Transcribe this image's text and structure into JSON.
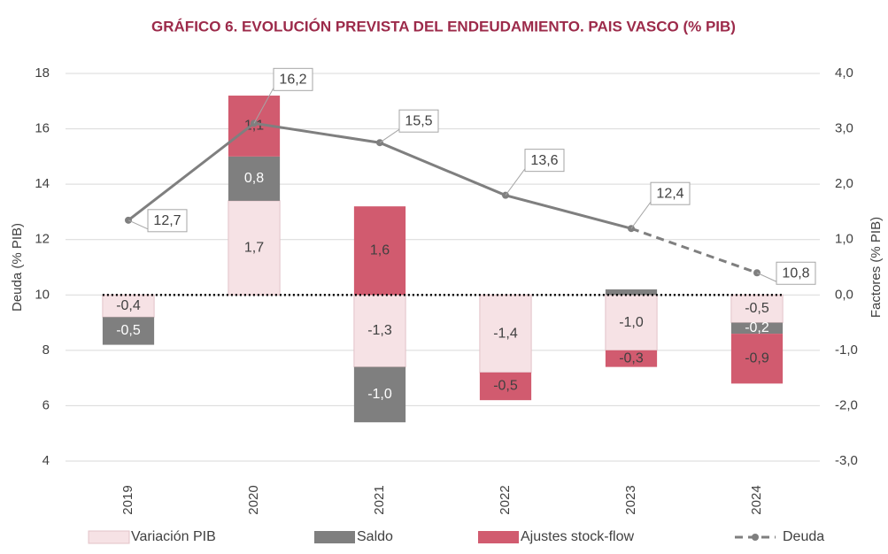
{
  "chart_data": {
    "type": "bar",
    "title": "GRÁFICO 6. EVOLUCIÓN PREVISTA DEL ENDEUDAMIENTO. PAIS VASCO (% PIB)",
    "y_label": "Deuda (% PIB)",
    "y2_label": "Factores (% PIB)",
    "categories": [
      "2019",
      "2020",
      "2021",
      "2022",
      "2023",
      "2024"
    ],
    "stacked": true,
    "ylim": [
      4,
      18
    ],
    "yticks": [
      4,
      6,
      8,
      10,
      12,
      14,
      16,
      18
    ],
    "y2lim": [
      -3,
      4
    ],
    "y2ticks": [
      {
        "value": -3,
        "label": "-3,0"
      },
      {
        "value": -2,
        "label": "-2,0"
      },
      {
        "value": -1,
        "label": "-1,0"
      },
      {
        "value": 0,
        "label": "0,0"
      },
      {
        "value": 1,
        "label": "1,0"
      },
      {
        "value": 2,
        "label": "2,0"
      },
      {
        "value": 3,
        "label": "3,0"
      },
      {
        "value": 4,
        "label": "4,0"
      }
    ],
    "series": [
      {
        "name": "Variación PIB",
        "type": "bar",
        "axis": "y2",
        "color": "#f6e2e5",
        "values": [
          -0.4,
          1.7,
          -1.3,
          -1.4,
          -1.0,
          -0.5
        ],
        "value_labels": [
          "-0,4",
          "1,7",
          "-1,3",
          "-1,4",
          "-1,0",
          "-0,5"
        ]
      },
      {
        "name": "Saldo",
        "type": "bar",
        "axis": "y2",
        "color": "#7f7f7f",
        "values": [
          -0.5,
          0.8,
          -1.0,
          null,
          0.1,
          -0.2
        ],
        "value_labels": [
          "-0,5",
          "0,8",
          "-1,0",
          null,
          null,
          "-0,2"
        ]
      },
      {
        "name": "Ajustes stock-flow",
        "type": "bar",
        "axis": "y2",
        "color": "#d15b6f",
        "values": [
          null,
          1.1,
          1.6,
          -0.5,
          -0.3,
          -0.9
        ],
        "value_labels": [
          null,
          "1,1",
          "1,6",
          "-0,5",
          "-0,3",
          "-0,9"
        ]
      },
      {
        "name": "Deuda",
        "type": "line",
        "axis": "y",
        "color": "#7f7f7f",
        "dashed_from": 4,
        "values": [
          12.7,
          16.2,
          15.5,
          13.6,
          12.4,
          10.8
        ],
        "value_labels": [
          "12,7",
          "16,2",
          "15,5",
          "13,6",
          "12,4",
          "10,8"
        ]
      }
    ]
  }
}
